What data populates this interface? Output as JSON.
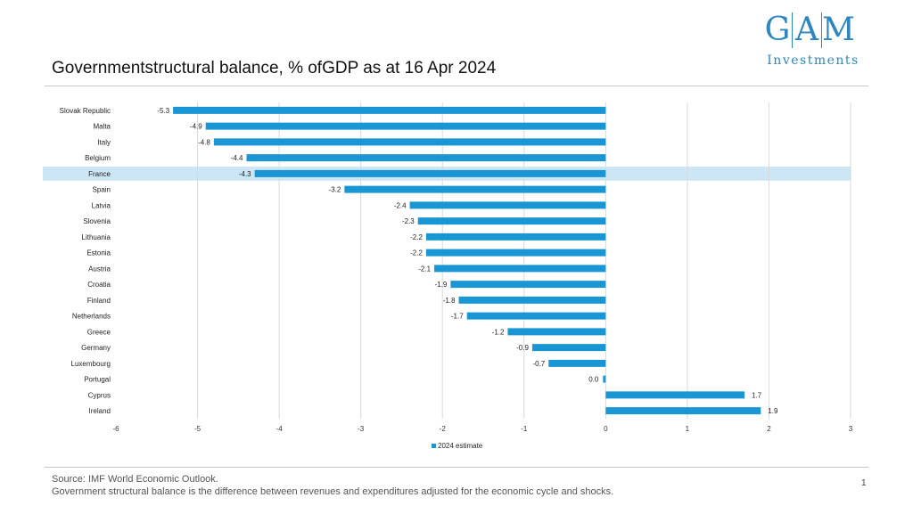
{
  "title": "Governmentstructural balance, % ofGDP as at 16 Apr 2024",
  "logo": {
    "letters": [
      "G",
      "A",
      "M"
    ],
    "subtitle": "Investments"
  },
  "footer": {
    "source": "Source: IMF World Economic Outlook.",
    "note": "Government structural balance is the difference between revenues and expenditures adjusted for the economic cycle and shocks.",
    "page_number": "1"
  },
  "colors": {
    "bar": "#1a96d4",
    "highlight": "#cde6f5",
    "grid": "#d9d9d9",
    "logo": "#2e86c1"
  },
  "chart_data": {
    "type": "bar",
    "orientation": "horizontal",
    "categories": [
      "Slovak Republic",
      "Malta",
      "Italy",
      "Belgium",
      "France",
      "Spain",
      "Latvia",
      "Slovenia",
      "Lithuania",
      "Estonia",
      "Austria",
      "Croatia",
      "Finland",
      "Netherlands",
      "Greece",
      "Germany",
      "Luxembourg",
      "Portugal",
      "Cyprus",
      "Ireland"
    ],
    "values": [
      -5.3,
      -4.9,
      -4.8,
      -4.4,
      -4.3,
      -3.2,
      -2.4,
      -2.3,
      -2.2,
      -2.2,
      -2.1,
      -1.9,
      -1.8,
      -1.7,
      -1.2,
      -0.9,
      -0.7,
      0.0,
      1.7,
      1.9
    ],
    "value_labels": [
      "-5.3",
      "-4.9",
      "-4.8",
      "-4.4",
      "-4.3",
      "-3.2",
      "-2.4",
      "-2.3",
      "-2.2",
      "-2.2",
      "-2.1",
      "-1.9",
      "-1.8",
      "-1.7",
      "-1.2",
      "-0.9",
      "-0.7",
      "0.0",
      "1.7",
      "1.9"
    ],
    "series_name": "2024 estimate",
    "highlighted_category": "France",
    "xlim": [
      -6,
      3
    ],
    "xticks": [
      -6,
      -5,
      -4,
      -3,
      -2,
      -1,
      0,
      1,
      2,
      3
    ],
    "xlabel": "",
    "ylabel": "",
    "grid": true,
    "legend_position": "bottom-center"
  }
}
